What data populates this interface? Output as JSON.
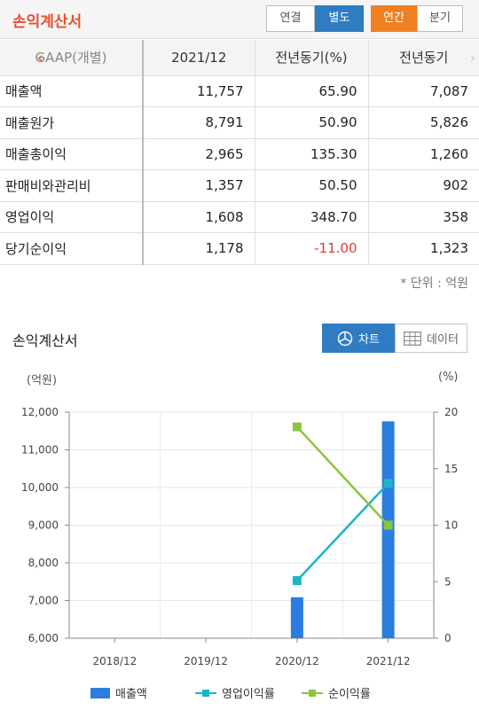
{
  "header": {
    "title": "손익계산서",
    "consolidation_tabs": [
      {
        "label": "연결",
        "active": false
      },
      {
        "label": "별도",
        "active": true
      }
    ],
    "period_tabs": [
      {
        "label": "연간",
        "active": true
      },
      {
        "label": "분기",
        "active": false
      }
    ]
  },
  "table": {
    "columns": [
      "GAAP(개별)",
      "2021/12",
      "전년동기(%)",
      "전년동기"
    ],
    "rows": [
      {
        "label": "매출액",
        "v2021": "11,757",
        "yoy_pct": "65.90",
        "prev": "7,087"
      },
      {
        "label": "매출원가",
        "v2021": "8,791",
        "yoy_pct": "50.90",
        "prev": "5,826"
      },
      {
        "label": "매출총이익",
        "v2021": "2,965",
        "yoy_pct": "135.30",
        "prev": "1,260"
      },
      {
        "label": "판매비와관리비",
        "v2021": "1,357",
        "yoy_pct": "50.50",
        "prev": "902"
      },
      {
        "label": "영업이익",
        "v2021": "1,608",
        "yoy_pct": "348.70",
        "prev": "358"
      },
      {
        "label": "당기순이익",
        "v2021": "1,178",
        "yoy_pct": "-11.00",
        "prev": "1,323"
      }
    ],
    "unit_note": "* 단위 : 억원"
  },
  "chart_section": {
    "title": "손익계산서",
    "chart_button": "차트",
    "data_button": "데이터",
    "left_unit": "(억원)",
    "right_unit": "(%)"
  },
  "chart_data": {
    "type": "bar",
    "categories": [
      "2018/12",
      "2019/12",
      "2020/12",
      "2021/12"
    ],
    "ylim": [
      6000,
      12000
    ],
    "y_ticks": [
      6000,
      7000,
      8000,
      9000,
      10000,
      11000,
      12000
    ],
    "y_tick_labels": [
      "6,000",
      "7,000",
      "8,000",
      "9,000",
      "10,000",
      "11,000",
      "12,000"
    ],
    "y2lim": [
      0,
      20
    ],
    "y2_ticks": [
      0,
      5,
      10,
      15,
      20
    ],
    "series": [
      {
        "name": "매출액",
        "type": "bar",
        "axis": "left",
        "color": "#2b7de0",
        "values": [
          null,
          null,
          7087,
          11757
        ]
      },
      {
        "name": "영업이익률",
        "type": "line",
        "axis": "right",
        "color": "#1bb5c9",
        "values": [
          null,
          null,
          5.1,
          13.7
        ]
      },
      {
        "name": "순이익률",
        "type": "line",
        "axis": "right",
        "color": "#8cc43f",
        "values": [
          null,
          null,
          18.7,
          10.0
        ]
      }
    ],
    "grid": true,
    "legend_position": "bottom"
  }
}
